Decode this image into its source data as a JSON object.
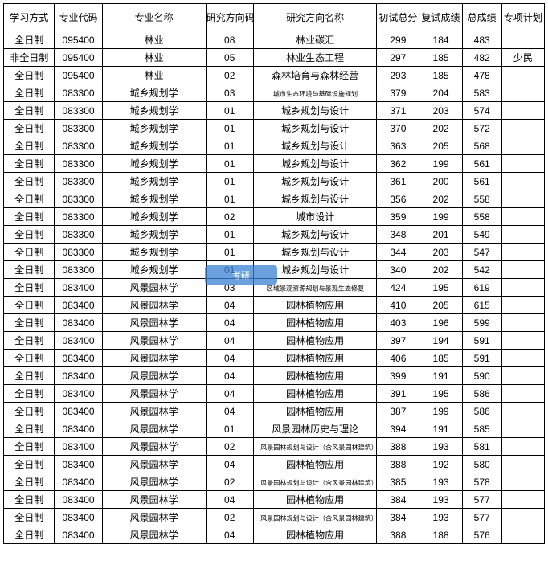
{
  "headers": [
    "学习方式",
    "专业代码",
    "专业名称",
    "研究方向码",
    "研究方向名称",
    "初试总分",
    "复试成绩",
    "总成绩",
    "专项计划"
  ],
  "rows": [
    [
      "全日制",
      "095400",
      "林业",
      "08",
      "林业碳汇",
      "299",
      "184",
      "483",
      ""
    ],
    [
      "非全日制",
      "095400",
      "林业",
      "05",
      "林业生态工程",
      "297",
      "185",
      "482",
      "少民"
    ],
    [
      "全日制",
      "095400",
      "林业",
      "02",
      "森林培育与森林经营",
      "293",
      "185",
      "478",
      ""
    ],
    [
      "全日制",
      "083300",
      "城乡规划学",
      "03",
      "城市生态环境与基础设施规划",
      "379",
      "204",
      "583",
      ""
    ],
    [
      "全日制",
      "083300",
      "城乡规划学",
      "01",
      "城乡规划与设计",
      "371",
      "203",
      "574",
      ""
    ],
    [
      "全日制",
      "083300",
      "城乡规划学",
      "01",
      "城乡规划与设计",
      "370",
      "202",
      "572",
      ""
    ],
    [
      "全日制",
      "083300",
      "城乡规划学",
      "01",
      "城乡规划与设计",
      "363",
      "205",
      "568",
      ""
    ],
    [
      "全日制",
      "083300",
      "城乡规划学",
      "01",
      "城乡规划与设计",
      "362",
      "199",
      "561",
      ""
    ],
    [
      "全日制",
      "083300",
      "城乡规划学",
      "01",
      "城乡规划与设计",
      "361",
      "200",
      "561",
      ""
    ],
    [
      "全日制",
      "083300",
      "城乡规划学",
      "01",
      "城乡规划与设计",
      "356",
      "202",
      "558",
      ""
    ],
    [
      "全日制",
      "083300",
      "城乡规划学",
      "02",
      "城市设计",
      "359",
      "199",
      "558",
      ""
    ],
    [
      "全日制",
      "083300",
      "城乡规划学",
      "01",
      "城乡规划与设计",
      "348",
      "201",
      "549",
      ""
    ],
    [
      "全日制",
      "083300",
      "城乡规划学",
      "01",
      "城乡规划与设计",
      "344",
      "203",
      "547",
      ""
    ],
    [
      "全日制",
      "083300",
      "城乡规划学",
      "01",
      "城乡规划与设计",
      "340",
      "202",
      "542",
      ""
    ],
    [
      "全日制",
      "083400",
      "风景园林学",
      "03",
      "区域景观资源规划与景观生态修复",
      "424",
      "195",
      "619",
      ""
    ],
    [
      "全日制",
      "083400",
      "风景园林学",
      "04",
      "园林植物应用",
      "410",
      "205",
      "615",
      ""
    ],
    [
      "全日制",
      "083400",
      "风景园林学",
      "04",
      "园林植物应用",
      "403",
      "196",
      "599",
      ""
    ],
    [
      "全日制",
      "083400",
      "风景园林学",
      "04",
      "园林植物应用",
      "397",
      "194",
      "591",
      ""
    ],
    [
      "全日制",
      "083400",
      "风景园林学",
      "04",
      "园林植物应用",
      "406",
      "185",
      "591",
      ""
    ],
    [
      "全日制",
      "083400",
      "风景园林学",
      "04",
      "园林植物应用",
      "399",
      "191",
      "590",
      ""
    ],
    [
      "全日制",
      "083400",
      "风景园林学",
      "04",
      "园林植物应用",
      "391",
      "195",
      "586",
      ""
    ],
    [
      "全日制",
      "083400",
      "风景园林学",
      "04",
      "园林植物应用",
      "387",
      "199",
      "586",
      ""
    ],
    [
      "全日制",
      "083400",
      "风景园林学",
      "01",
      "风景园林历史与理论",
      "394",
      "191",
      "585",
      ""
    ],
    [
      "全日制",
      "083400",
      "风景园林学",
      "02",
      "风景园林规划与设计（含风景园林建筑）",
      "388",
      "193",
      "581",
      ""
    ],
    [
      "全日制",
      "083400",
      "风景园林学",
      "04",
      "园林植物应用",
      "388",
      "192",
      "580",
      ""
    ],
    [
      "全日制",
      "083400",
      "风景园林学",
      "02",
      "风景园林规划与设计（含风景园林建筑）",
      "385",
      "193",
      "578",
      ""
    ],
    [
      "全日制",
      "083400",
      "风景园林学",
      "04",
      "园林植物应用",
      "384",
      "193",
      "577",
      ""
    ],
    [
      "全日制",
      "083400",
      "风景园林学",
      "02",
      "风景园林规划与设计（含风景园林建筑）",
      "384",
      "193",
      "577",
      ""
    ],
    [
      "全日制",
      "083400",
      "风景园林学",
      "04",
      "园林植物应用",
      "388",
      "188",
      "576",
      ""
    ]
  ],
  "shrinkCells": [
    [
      3,
      4
    ],
    [
      14,
      4
    ],
    [
      23,
      4
    ],
    [
      25,
      4
    ],
    [
      27,
      4
    ]
  ],
  "watermark_text": "考研",
  "colors": {
    "border": "#000000",
    "bg": "#ffffff",
    "watermark_bg": "#3b82d6"
  }
}
